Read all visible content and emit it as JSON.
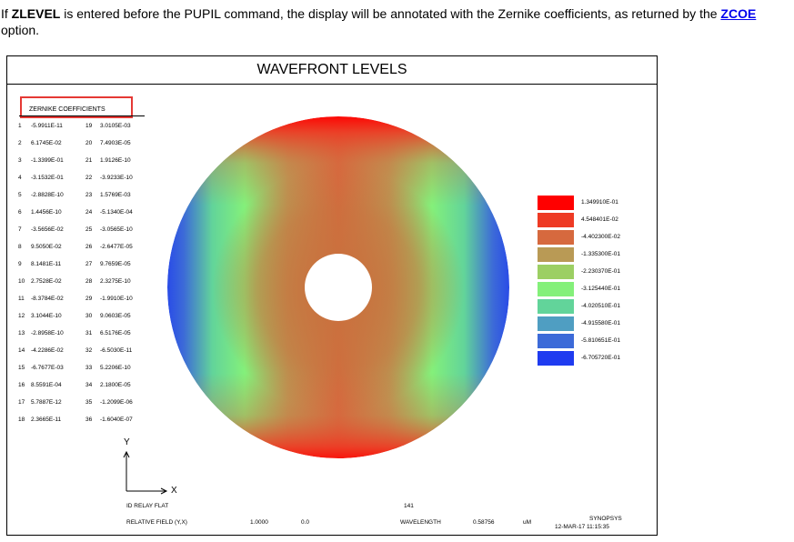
{
  "intro": {
    "prefix": "If ",
    "keyword": "ZLEVEL",
    "middle": " is entered before the PUPIL command, the display will be annotated with the Zernike coefficients, as returned by the ",
    "link_label": "ZCOE",
    "line2": "option."
  },
  "panel": {
    "title": "WAVEFRONT LEVELS",
    "zernike_title": "ZERNIKE COEFFICIENTS",
    "zernike": [
      {
        "n1": "1",
        "v1": "-5.9911E-11",
        "n2": "19",
        "v2": "3.0105E-03"
      },
      {
        "n1": "2",
        "v1": "6.1745E-02",
        "n2": "20",
        "v2": "7.4903E-05"
      },
      {
        "n1": "3",
        "v1": "-1.3399E-01",
        "n2": "21",
        "v2": "1.9126E-10"
      },
      {
        "n1": "4",
        "v1": "-3.1532E-01",
        "n2": "22",
        "v2": "-3.9233E-10"
      },
      {
        "n1": "5",
        "v1": "-2.8828E-10",
        "n2": "23",
        "v2": "1.5769E-03"
      },
      {
        "n1": "6",
        "v1": "1.4456E-10",
        "n2": "24",
        "v2": "-5.1340E-04"
      },
      {
        "n1": "7",
        "v1": "-3.5656E-02",
        "n2": "25",
        "v2": "-3.0565E-10"
      },
      {
        "n1": "8",
        "v1": "9.5050E-02",
        "n2": "26",
        "v2": "-2.6477E-05"
      },
      {
        "n1": "9",
        "v1": "8.1481E-11",
        "n2": "27",
        "v2": "9.7659E-05"
      },
      {
        "n1": "10",
        "v1": "2.7528E-02",
        "n2": "28",
        "v2": "2.3275E-10"
      },
      {
        "n1": "11",
        "v1": "-8.3784E-02",
        "n2": "29",
        "v2": "-1.9910E-10"
      },
      {
        "n1": "12",
        "v1": "3.1044E-10",
        "n2": "30",
        "v2": "9.0603E-05"
      },
      {
        "n1": "13",
        "v1": "-2.8958E-10",
        "n2": "31",
        "v2": "6.5176E-05"
      },
      {
        "n1": "14",
        "v1": "-4.2286E-02",
        "n2": "32",
        "v2": "-6.5030E-11"
      },
      {
        "n1": "15",
        "v1": "-6.7677E-03",
        "n2": "33",
        "v2": "5.2206E-10"
      },
      {
        "n1": "16",
        "v1": "8.5591E-04",
        "n2": "34",
        "v2": "2.1800E-05"
      },
      {
        "n1": "17",
        "v1": "5.7887E-12",
        "n2": "35",
        "v2": "-1.2099E-06"
      },
      {
        "n1": "18",
        "v1": "2.3665E-11",
        "n2": "36",
        "v2": "-1.6040E-07"
      }
    ],
    "legend": [
      {
        "label": "1.349910E-01",
        "color": "#ff0000"
      },
      {
        "label": "4.548401E-02",
        "color": "#ee3a24"
      },
      {
        "label": "-4.402300E-02",
        "color": "#d6693e"
      },
      {
        "label": "-1.335300E-01",
        "color": "#b99a55"
      },
      {
        "label": "-2.230370E-01",
        "color": "#9ccf63"
      },
      {
        "label": "-3.125440E-01",
        "color": "#84f07a"
      },
      {
        "label": "-4.020510E-01",
        "color": "#62d49a"
      },
      {
        "label": "-4.915580E-01",
        "color": "#4f9ec2"
      },
      {
        "label": "-5.810651E-01",
        "color": "#3c6ad8"
      },
      {
        "label": "-6.705720E-01",
        "color": "#1f3bf0"
      }
    ],
    "axes": {
      "y": "Y",
      "x": "X"
    },
    "footer": {
      "system": "ID RELAY FLAT",
      "number": "141",
      "field_label": "RELATIVE FIELD (Y,X)",
      "field_y": "1.0000",
      "field_x": "0.0",
      "wavelength_label": "WAVELENGTH",
      "wavelength_value": "0.58756",
      "wavelength_unit": "uM",
      "brand": "SYNOPSYS",
      "date": "12-MAR-17  11:15:35"
    }
  }
}
